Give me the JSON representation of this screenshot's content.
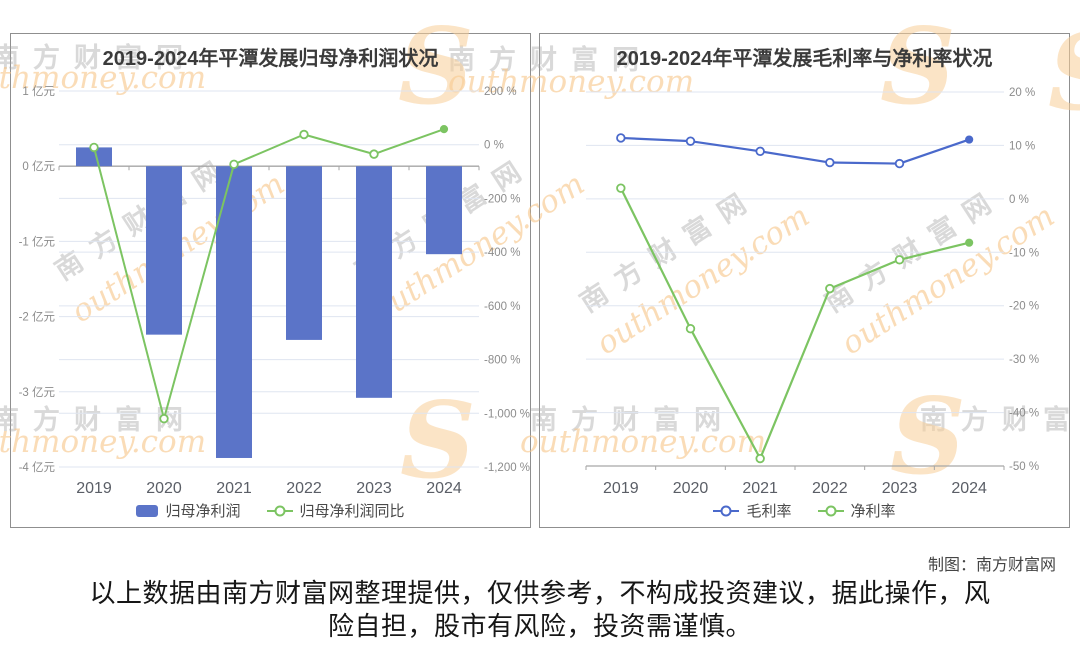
{
  "watermark": {
    "cn": "南方财富网",
    "en": "outhmoney.com",
    "swoosh": "S"
  },
  "credit": "制图：南方财富网",
  "disclaimer": {
    "line1": "以上数据由南方财富网整理提供，仅供参考，不构成投资建议，据此操作，风",
    "line2": "险自担，股市有风险，投资需谨慎。"
  },
  "chart_data": [
    {
      "type": "bar",
      "title": "2019-2024年平潭发展归母净利润状况",
      "categories": [
        "2019",
        "2020",
        "2021",
        "2022",
        "2023",
        "2024"
      ],
      "series": [
        {
          "name": "归母净利润",
          "type": "bar",
          "axis": "left",
          "color": "#5b74c8",
          "values": [
            0.25,
            -2.24,
            -3.88,
            -2.31,
            -3.08,
            -1.17
          ]
        },
        {
          "name": "归母净利润同比",
          "type": "line",
          "axis": "right",
          "color": "#7cc462",
          "values": [
            -10,
            -1020,
            -73,
            38,
            -35,
            58
          ]
        }
      ],
      "left_axis": {
        "unit": "亿元",
        "ticks": [
          1,
          0,
          -1,
          -2,
          -3,
          -4
        ],
        "max": 1,
        "min": -4
      },
      "right_axis": {
        "unit": "%",
        "ticks": [
          200,
          0,
          -200,
          -400,
          -600,
          -800,
          -1000,
          -1200
        ],
        "max": 200,
        "min": -1200
      },
      "grid": true,
      "legend_position": "bottom"
    },
    {
      "type": "line",
      "title": "2019-2024年平潭发展毛利率与净利率状况",
      "categories": [
        "2019",
        "2020",
        "2021",
        "2022",
        "2023",
        "2024"
      ],
      "series": [
        {
          "name": "毛利率",
          "type": "line",
          "axis": "right",
          "color": "#4a69cb",
          "values": [
            11.4,
            10.8,
            8.9,
            6.8,
            6.6,
            11.1
          ]
        },
        {
          "name": "净利率",
          "type": "line",
          "axis": "right",
          "color": "#7cc462",
          "values": [
            2,
            -24.3,
            -48.6,
            -16.8,
            -11.4,
            -8.2
          ]
        }
      ],
      "right_axis": {
        "unit": "%",
        "ticks": [
          20,
          10,
          0,
          -10,
          -20,
          -30,
          -40,
          -50
        ],
        "max": 20,
        "min": -50
      },
      "grid": true,
      "legend_position": "bottom"
    }
  ]
}
